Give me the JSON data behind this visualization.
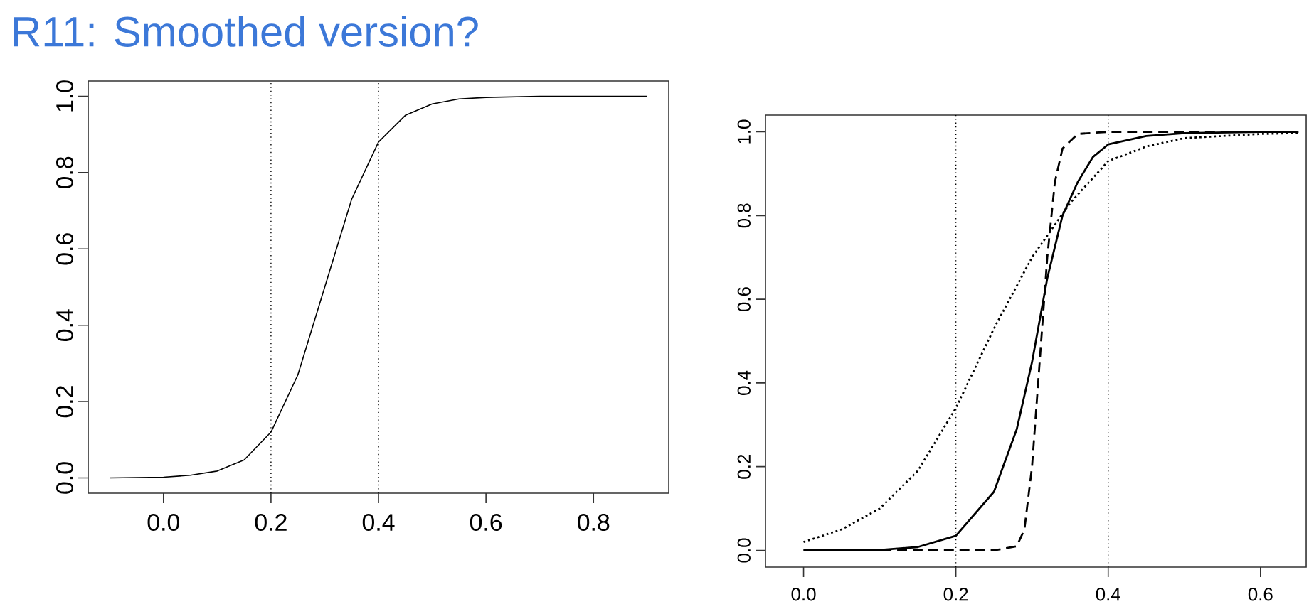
{
  "chart_data": [
    {
      "type": "line",
      "title": "R11: Smoothed version?",
      "xlim": [
        -0.14,
        0.94
      ],
      "ylim": [
        -0.04,
        1.04
      ],
      "xticks": [
        {
          "value": 0,
          "label": "0.0"
        },
        {
          "value": 0.2,
          "label": "0.2"
        },
        {
          "value": 0.4,
          "label": "0.4"
        },
        {
          "value": 0.6,
          "label": "0.6"
        },
        {
          "value": 0.8,
          "label": "0.8"
        }
      ],
      "yticks": [
        {
          "value": 0,
          "label": "0.0"
        },
        {
          "value": 0.2,
          "label": "0.2"
        },
        {
          "value": 0.4,
          "label": "0.4"
        },
        {
          "value": 0.6,
          "label": "0.6"
        },
        {
          "value": 0.8,
          "label": "0.8"
        },
        {
          "value": 1,
          "label": "1.0"
        }
      ],
      "ref_lines": [
        {
          "axis": "x",
          "value": 0.2,
          "line_style": "dotted"
        },
        {
          "axis": "x",
          "value": 0.4,
          "line_style": "dotted"
        }
      ],
      "series": [
        {
          "color": "#000000",
          "line_style": "solid",
          "x": [
            -0.1,
            0.0,
            0.05,
            0.1,
            0.15,
            0.2,
            0.25,
            0.3,
            0.35,
            0.4,
            0.45,
            0.5,
            0.55,
            0.6,
            0.7,
            0.8,
            0.9
          ],
          "values": [
            0.0,
            0.002,
            0.007,
            0.018,
            0.047,
            0.12,
            0.27,
            0.5,
            0.73,
            0.88,
            0.95,
            0.98,
            0.993,
            0.997,
            1.0,
            1.0,
            1.0
          ]
        }
      ]
    },
    {
      "type": "line",
      "xlim": [
        -0.05,
        0.66
      ],
      "ylim": [
        -0.04,
        1.04
      ],
      "xticks": [
        {
          "value": 0,
          "label": "0.0"
        },
        {
          "value": 0.2,
          "label": "0.2"
        },
        {
          "value": 0.4,
          "label": "0.4"
        },
        {
          "value": 0.6,
          "label": "0.6"
        }
      ],
      "yticks": [
        {
          "value": 0,
          "label": "0.0"
        },
        {
          "value": 0.2,
          "label": "0.2"
        },
        {
          "value": 0.4,
          "label": "0.4"
        },
        {
          "value": 0.6,
          "label": "0.6"
        },
        {
          "value": 0.8,
          "label": "0.8"
        },
        {
          "value": 1,
          "label": "1.0"
        }
      ],
      "ref_lines": [
        {
          "axis": "x",
          "value": 0.2,
          "line_style": "dotted"
        },
        {
          "axis": "x",
          "value": 0.4,
          "line_style": "dotted"
        }
      ],
      "series": [
        {
          "color": "#000000",
          "line_style": "solid",
          "x": [
            0.0,
            0.1,
            0.15,
            0.2,
            0.25,
            0.28,
            0.3,
            0.32,
            0.34,
            0.36,
            0.38,
            0.4,
            0.45,
            0.5,
            0.6,
            0.65
          ],
          "values": [
            0.0,
            0.001,
            0.008,
            0.035,
            0.14,
            0.29,
            0.45,
            0.65,
            0.8,
            0.88,
            0.94,
            0.97,
            0.99,
            0.997,
            1.0,
            1.0
          ]
        },
        {
          "color": "#000000",
          "line_style": "dashed",
          "x": [
            0.0,
            0.25,
            0.28,
            0.29,
            0.3,
            0.31,
            0.32,
            0.33,
            0.34,
            0.36,
            0.4,
            0.65
          ],
          "values": [
            0.0,
            0.0,
            0.01,
            0.05,
            0.2,
            0.45,
            0.7,
            0.88,
            0.96,
            0.995,
            1.0,
            1.0
          ]
        },
        {
          "color": "#000000",
          "line_style": "dotted",
          "x": [
            0.0,
            0.05,
            0.1,
            0.15,
            0.2,
            0.25,
            0.3,
            0.35,
            0.4,
            0.45,
            0.5,
            0.6,
            0.65
          ],
          "values": [
            0.02,
            0.05,
            0.1,
            0.19,
            0.34,
            0.53,
            0.7,
            0.83,
            0.93,
            0.965,
            0.985,
            0.995,
            0.997
          ]
        }
      ]
    }
  ]
}
